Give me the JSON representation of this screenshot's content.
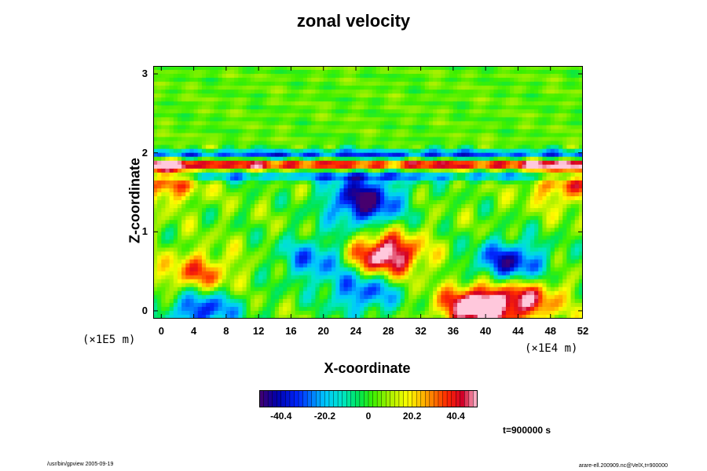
{
  "chart_data": {
    "type": "heatmap",
    "title": "zonal velocity",
    "xlabel": "X-coordinate",
    "ylabel": "Z-coordinate",
    "x_unit": "(×1E4 m)",
    "y_unit": "(×1E5 m)",
    "x_ticks": [
      "0",
      "4",
      "8",
      "12",
      "16",
      "20",
      "24",
      "28",
      "32",
      "36",
      "40",
      "44",
      "48",
      "52"
    ],
    "y_ticks": [
      "0",
      "1",
      "2",
      "3"
    ],
    "xlim": [
      -1,
      52
    ],
    "ylim": [
      -0.1,
      3.1
    ],
    "colorbar": {
      "ticks": [
        "-40.4",
        "-20.2",
        "0",
        "20.2",
        "40.4"
      ],
      "range": [
        -50.5,
        50.5
      ]
    },
    "time_label": "t=900000 s",
    "features": [
      {
        "x": 27.5,
        "z": 0.7,
        "value": 55,
        "desc": "strong positive"
      },
      {
        "x": 39,
        "z": 0.05,
        "value": 55,
        "desc": "strong positive"
      },
      {
        "x": 45,
        "z": 0.15,
        "value": 35,
        "desc": "positive"
      },
      {
        "x": 43,
        "z": 0.6,
        "value": -45,
        "desc": "strong negative"
      },
      {
        "x": 5,
        "z": 0.02,
        "value": -40,
        "desc": "negative"
      },
      {
        "x": 25,
        "z": 0.25,
        "value": -35,
        "desc": "negative"
      },
      {
        "x": 19,
        "z": 0.65,
        "value": -30,
        "desc": "negative"
      },
      {
        "x": 4.5,
        "z": 0.45,
        "value": 30,
        "desc": "positive"
      },
      {
        "x": 25,
        "z": 1.85,
        "value": 40,
        "desc": "positive band"
      },
      {
        "x": 25,
        "z": 1.98,
        "value": -35,
        "desc": "negative band"
      },
      {
        "x": 25,
        "z": 1.7,
        "value": -25,
        "desc": "negative band"
      },
      {
        "x": 0,
        "z": 1.65,
        "value": 35,
        "desc": "positive"
      },
      {
        "x": 50,
        "z": 1.62,
        "value": 30,
        "desc": "positive"
      },
      {
        "x": 25,
        "z": 1.45,
        "value": -40,
        "desc": "negative"
      },
      {
        "x": 25,
        "z": 1.25,
        "value": -20,
        "desc": "negative"
      }
    ]
  },
  "footer": {
    "left": "/usr/bin/gpview 2005-09-19",
    "right": "arare-ell.200909.nc@VelX,t=900000"
  }
}
